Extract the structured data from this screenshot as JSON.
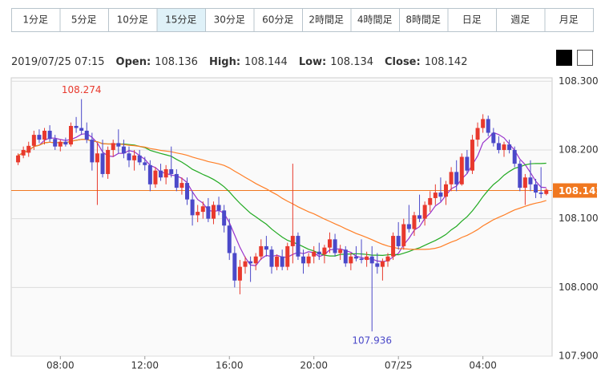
{
  "tabs": [
    "1分足",
    "5分足",
    "10分足",
    "15分足",
    "30分足",
    "60分足",
    "2時間足",
    "4時間足",
    "8時間足",
    "日足",
    "週足",
    "月足"
  ],
  "active_tab": 3,
  "header": {
    "datetime": "2019/07/25 07:15",
    "fields": [
      {
        "label": "Open:",
        "value": 108.136
      },
      {
        "label": "High:",
        "value": 108.144
      },
      {
        "label": "Low:",
        "value": 108.134
      },
      {
        "label": "Close:",
        "value": 108.142
      }
    ]
  },
  "chart_data": {
    "type": "candlestick",
    "up_color": "#e8392d",
    "down_color": "#4b49c9",
    "grid": true,
    "ylim": [
      107.9,
      108.305
    ],
    "yticks": [
      {
        "value": 107.9,
        "label": "107.900"
      },
      {
        "value": 108.0,
        "label": "108.000"
      },
      {
        "value": 108.1,
        "label": "108.100"
      },
      {
        "value": 108.2,
        "label": "108.200"
      },
      {
        "value": 108.3,
        "label": "108.300"
      }
    ],
    "xlim": [
      -1.3,
      101.1
    ],
    "xticks": [
      {
        "value": 8,
        "label": "08:00"
      },
      {
        "value": 24,
        "label": "12:00"
      },
      {
        "value": 40,
        "label": "16:00"
      },
      {
        "value": 56,
        "label": "20:00"
      },
      {
        "value": 72,
        "label": "07/25"
      },
      {
        "value": 88,
        "label": "04:00"
      }
    ],
    "current_price": 108.141,
    "current_color": "#f07820",
    "high_label": 108.274,
    "low_label": 107.936,
    "moving_averages": [
      {
        "period": 5,
        "color": "#9933cc"
      },
      {
        "period": 20,
        "color": "#22aa22"
      },
      {
        "period": 40,
        "color": "#ff7f27"
      }
    ],
    "candles": [
      [
        108.182,
        108.195,
        108.178,
        108.192
      ],
      [
        108.192,
        108.205,
        108.188,
        108.2
      ],
      [
        108.196,
        108.212,
        108.19,
        108.206
      ],
      [
        108.206,
        108.228,
        108.2,
        108.222
      ],
      [
        108.222,
        108.23,
        108.21,
        108.215
      ],
      [
        108.215,
        108.232,
        108.208,
        108.228
      ],
      [
        108.228,
        108.236,
        108.212,
        108.216
      ],
      [
        108.216,
        108.222,
        108.2,
        108.205
      ],
      [
        108.205,
        108.215,
        108.198,
        108.212
      ],
      [
        108.212,
        108.218,
        108.205,
        108.208
      ],
      [
        108.208,
        108.24,
        108.205,
        108.235
      ],
      [
        108.235,
        108.248,
        108.225,
        108.232
      ],
      [
        108.232,
        108.274,
        108.222,
        108.228
      ],
      [
        108.228,
        108.24,
        108.21,
        108.215
      ],
      [
        108.215,
        108.225,
        108.17,
        108.182
      ],
      [
        108.182,
        108.21,
        108.12,
        108.195
      ],
      [
        108.195,
        108.215,
        108.16,
        108.165
      ],
      [
        108.165,
        108.205,
        108.158,
        108.2
      ],
      [
        108.2,
        108.215,
        108.19,
        108.21
      ],
      [
        108.21,
        108.23,
        108.195,
        108.205
      ],
      [
        108.205,
        108.215,
        108.188,
        108.195
      ],
      [
        108.195,
        108.205,
        108.175,
        108.185
      ],
      [
        108.185,
        108.2,
        108.17,
        108.192
      ],
      [
        108.192,
        108.2,
        108.178,
        108.182
      ],
      [
        108.182,
        108.19,
        108.17,
        108.178
      ],
      [
        108.178,
        108.185,
        108.14,
        108.15
      ],
      [
        108.15,
        108.175,
        108.145,
        108.17
      ],
      [
        108.17,
        108.18,
        108.155,
        108.16
      ],
      [
        108.16,
        108.178,
        108.15,
        108.172
      ],
      [
        108.172,
        108.205,
        108.16,
        108.165
      ],
      [
        108.165,
        108.172,
        108.14,
        108.145
      ],
      [
        108.145,
        108.16,
        108.135,
        108.152
      ],
      [
        108.152,
        108.16,
        108.12,
        108.128
      ],
      [
        108.128,
        108.14,
        108.09,
        108.105
      ],
      [
        108.105,
        108.12,
        108.095,
        108.11
      ],
      [
        108.11,
        108.125,
        108.1,
        108.118
      ],
      [
        108.118,
        108.13,
        108.095,
        108.1
      ],
      [
        108.1,
        108.125,
        108.092,
        108.12
      ],
      [
        108.12,
        108.132,
        108.105,
        108.112
      ],
      [
        108.112,
        108.12,
        108.08,
        108.09
      ],
      [
        108.09,
        108.1,
        108.04,
        108.05
      ],
      [
        108.05,
        108.06,
        108.0,
        108.01
      ],
      [
        108.01,
        108.04,
        107.99,
        108.03
      ],
      [
        108.03,
        108.045,
        108.02,
        108.038
      ],
      [
        108.038,
        108.045,
        108.008,
        108.035
      ],
      [
        108.035,
        108.05,
        108.025,
        108.045
      ],
      [
        108.045,
        108.07,
        108.04,
        108.06
      ],
      [
        108.06,
        108.075,
        108.045,
        108.055
      ],
      [
        108.055,
        108.06,
        108.02,
        108.03
      ],
      [
        108.03,
        108.048,
        108.025,
        108.045
      ],
      [
        108.045,
        108.055,
        108.025,
        108.03
      ],
      [
        108.03,
        108.065,
        108.025,
        108.06
      ],
      [
        108.06,
        108.18,
        108.035,
        108.075
      ],
      [
        108.075,
        108.08,
        108.04,
        108.045
      ],
      [
        108.045,
        108.055,
        108.02,
        108.035
      ],
      [
        108.035,
        108.05,
        108.03,
        108.045
      ],
      [
        108.045,
        108.06,
        108.035,
        108.052
      ],
      [
        108.052,
        108.065,
        108.04,
        108.048
      ],
      [
        108.048,
        108.062,
        108.035,
        108.058
      ],
      [
        108.058,
        108.08,
        108.05,
        108.07
      ],
      [
        108.07,
        108.078,
        108.045,
        108.05
      ],
      [
        108.05,
        108.062,
        108.04,
        108.055
      ],
      [
        108.055,
        108.06,
        108.03,
        108.035
      ],
      [
        108.035,
        108.05,
        108.025,
        108.045
      ],
      [
        108.045,
        108.06,
        108.038,
        108.042
      ],
      [
        108.042,
        108.07,
        108.035,
        108.04
      ],
      [
        108.04,
        108.052,
        108.03,
        108.045
      ],
      [
        108.045,
        108.06,
        107.936,
        108.035
      ],
      [
        108.035,
        108.05,
        108.02,
        108.03
      ],
      [
        108.03,
        108.042,
        108.01,
        108.038
      ],
      [
        108.038,
        108.05,
        108.03,
        108.045
      ],
      [
        108.045,
        108.08,
        108.04,
        108.075
      ],
      [
        108.075,
        108.095,
        108.055,
        108.06
      ],
      [
        108.06,
        108.1,
        108.055,
        108.092
      ],
      [
        108.092,
        108.12,
        108.08,
        108.085
      ],
      [
        108.085,
        108.11,
        108.075,
        108.105
      ],
      [
        108.105,
        108.135,
        108.095,
        108.1
      ],
      [
        108.1,
        108.125,
        108.09,
        108.12
      ],
      [
        108.12,
        108.14,
        108.11,
        108.13
      ],
      [
        108.13,
        108.15,
        108.12,
        108.138
      ],
      [
        108.138,
        108.16,
        108.125,
        108.132
      ],
      [
        108.132,
        108.155,
        108.12,
        108.15
      ],
      [
        108.15,
        108.175,
        108.14,
        108.168
      ],
      [
        108.168,
        108.185,
        108.14,
        108.15
      ],
      [
        108.15,
        108.195,
        108.148,
        108.19
      ],
      [
        108.19,
        108.2,
        108.165,
        108.17
      ],
      [
        108.17,
        108.222,
        108.165,
        108.215
      ],
      [
        108.215,
        108.24,
        108.205,
        108.232
      ],
      [
        108.232,
        108.252,
        108.225,
        108.245
      ],
      [
        108.245,
        108.25,
        108.22,
        108.225
      ],
      [
        108.225,
        108.232,
        108.205,
        108.21
      ],
      [
        108.21,
        108.22,
        108.195,
        108.2
      ],
      [
        108.2,
        108.212,
        108.19,
        108.208
      ],
      [
        108.208,
        108.215,
        108.195,
        108.2
      ],
      [
        108.2,
        108.205,
        108.175,
        108.18
      ],
      [
        108.18,
        108.185,
        108.14,
        108.145
      ],
      [
        108.145,
        108.165,
        108.12,
        108.16
      ],
      [
        108.16,
        108.185,
        108.14,
        108.15
      ],
      [
        108.15,
        108.158,
        108.13,
        108.138
      ],
      [
        108.138,
        108.175,
        108.13,
        108.136
      ],
      [
        108.136,
        108.144,
        108.134,
        108.142
      ]
    ]
  }
}
